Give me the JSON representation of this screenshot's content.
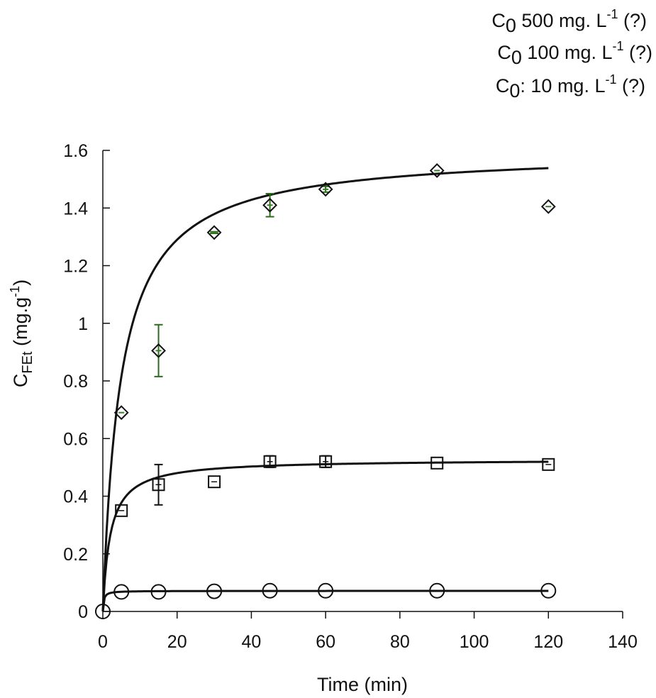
{
  "chart_data": {
    "type": "scatter",
    "title": "",
    "xlabel": "Time (min)",
    "ylabel": {
      "base": "C",
      "sub": "FEt",
      "unit_open": " (mg.g",
      "unit_sup": "-1",
      "unit_close": ")"
    },
    "xlim": [
      0,
      140
    ],
    "ylim": [
      0,
      1.6
    ],
    "xticks": [
      0,
      20,
      40,
      60,
      80,
      100,
      120,
      140
    ],
    "yticks": [
      0,
      0.2,
      0.4,
      0.6,
      0.8,
      1,
      1.2,
      1.4,
      1.6
    ],
    "ytick_labels": [
      "0",
      "0.2",
      "0.4",
      "0.6",
      "0.8",
      "1",
      "1.2",
      "1.4",
      "1.6"
    ],
    "grid": false,
    "legend_position": "top-right",
    "series": [
      {
        "name": "C0 500 mg. L-1",
        "legend": {
          "base": "C",
          "sub": "0",
          "mid": " 500 mg. L",
          "sup": "-1",
          "tail": " (?)"
        },
        "marker": "diamond",
        "marker_fill": "#3a7d2c",
        "error_color": "#2e6b1f",
        "x": [
          5,
          15,
          30,
          45,
          60,
          90,
          120
        ],
        "y": [
          0.69,
          0.905,
          1.315,
          1.41,
          1.465,
          1.53,
          1.405
        ],
        "error": [
          0,
          0.09,
          0.003,
          0.04,
          0.01,
          0,
          0
        ],
        "fit": {
          "model": "pseudo-second-order",
          "qe": 1.6,
          "k": 0.13
        }
      },
      {
        "name": "C0 100 mg. L-1",
        "legend": {
          "base": "C",
          "sub": "0",
          "mid": " 100 mg. L",
          "sup": "-1",
          "tail": " (?)"
        },
        "marker": "square",
        "marker_fill": "none",
        "error_color": "#111111",
        "x": [
          5,
          15,
          30,
          45,
          60,
          90,
          120
        ],
        "y": [
          0.35,
          0.44,
          0.45,
          0.52,
          0.52,
          0.515,
          0.51
        ],
        "error": [
          0,
          0.07,
          0,
          0.02,
          0.02,
          0,
          0
        ],
        "fit": {
          "model": "pseudo-second-order",
          "qe": 0.528,
          "k": 0.95
        }
      },
      {
        "name": "C0: 10 mg. L-1",
        "legend": {
          "base": "C",
          "sub": "0",
          "mid": ": 10 mg. L",
          "sup": "-1",
          "tail": " (?)"
        },
        "marker": "circle",
        "marker_fill": "none",
        "error_color": "#111111",
        "x": [
          0,
          5,
          15,
          30,
          45,
          60,
          90,
          120
        ],
        "y": [
          0,
          0.068,
          0.068,
          0.07,
          0.072,
          0.072,
          0.072,
          0.072
        ],
        "error": [
          0,
          0,
          0,
          0,
          0,
          0,
          0,
          0
        ],
        "fit": {
          "model": "pseudo-second-order",
          "qe": 0.0715,
          "k": 60
        }
      }
    ]
  }
}
